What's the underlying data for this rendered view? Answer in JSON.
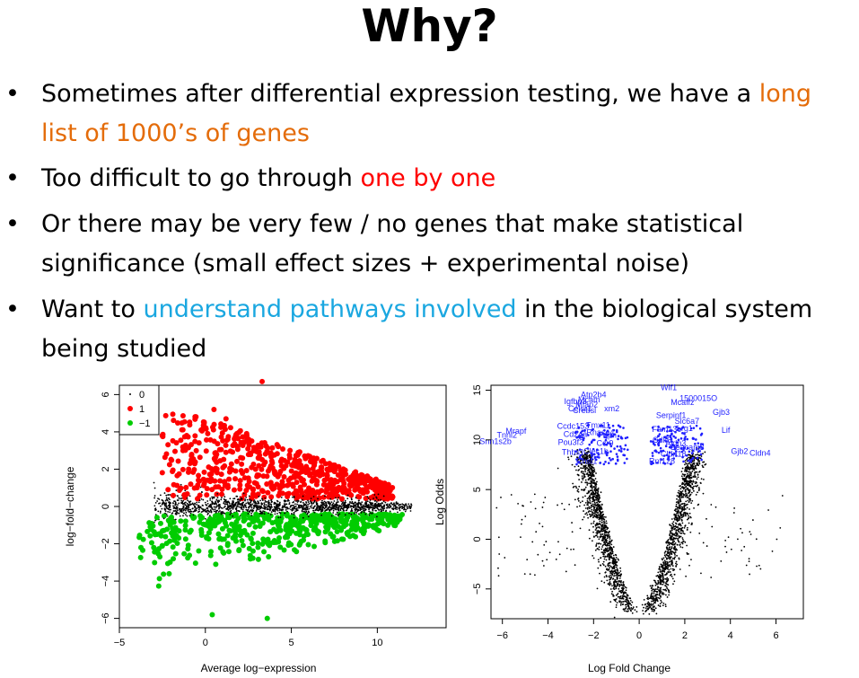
{
  "slide": {
    "title": "Why?",
    "bullets": [
      {
        "before": "Sometimes after differential expression testing, we have a ",
        "highlight": "long list of 1000’s of genes",
        "after": "",
        "highlight_color": "#e46c0a"
      },
      {
        "before": "Too difficult to go through ",
        "highlight": "one by one",
        "after": "",
        "highlight_color": "#ff0000"
      },
      {
        "before": "Or there may be very few / no genes that make statistical significance (small effect sizes + experimental noise)",
        "highlight": "",
        "after": ""
      },
      {
        "before": "Want to ",
        "highlight": "understand pathways involved",
        "after": " in the biological system being studied",
        "highlight_color": "#1aa7e0"
      }
    ]
  },
  "chart_data": [
    {
      "type": "scatter",
      "xlabel": "Average log−expression",
      "ylabel": "log−fold−change",
      "xlim": [
        -5,
        14
      ],
      "ylim": [
        -6.5,
        6.5
      ],
      "x_ticks": [
        "−5",
        "0",
        "5",
        "10"
      ],
      "x_tick_values": [
        -5,
        0,
        5,
        10
      ],
      "y_ticks": [
        "−6",
        "−4",
        "−2",
        "0",
        "2",
        "4",
        "6"
      ],
      "y_tick_values": [
        -6,
        -4,
        -2,
        0,
        2,
        4,
        6
      ],
      "legend": {
        "placement": "top-left",
        "entries": [
          "0",
          "1",
          "−1"
        ]
      },
      "series": [
        {
          "name": "0",
          "color": "#000000"
        },
        {
          "name": "1",
          "color": "#ff0000"
        },
        {
          "name": "−1",
          "color": "#00cc00"
        }
      ],
      "outlier_points": [
        [
          3.3,
          6.7
        ],
        [
          0.4,
          -5.8
        ],
        [
          3.6,
          -6.0
        ],
        [
          -3.0,
          5.4
        ],
        [
          -1.3,
          3.0
        ],
        [
          1.2,
          4.7
        ],
        [
          0.5,
          5.2
        ]
      ]
    },
    {
      "type": "scatter",
      "xlabel": "Log Fold Change",
      "ylabel": "Log Odds",
      "xlim": [
        -6.5,
        7.2
      ],
      "ylim": [
        -8,
        15.5
      ],
      "x_ticks": [
        "−6",
        "−4",
        "−2",
        "0",
        "2",
        "4",
        "6"
      ],
      "x_tick_values": [
        -6,
        -4,
        -2,
        0,
        2,
        4,
        6
      ],
      "y_ticks": [
        "−5",
        "0",
        "5",
        "10",
        "15"
      ],
      "y_tick_values": [
        -5,
        0,
        5,
        10,
        15
      ],
      "point_color": "#000000",
      "gene_label_color": "#1f1fff",
      "gene_labels": [
        {
          "text": "Wif1",
          "x": 1.3,
          "y": 15.0
        },
        {
          "text": "1500015O",
          "x": 2.6,
          "y": 13.9
        },
        {
          "text": "Atp2b4",
          "x": -2.0,
          "y": 14.3
        },
        {
          "text": "Mcam",
          "x": -2.2,
          "y": 13.8
        },
        {
          "text": "Igfbp3",
          "x": -2.8,
          "y": 13.6
        },
        {
          "text": "Mfap2",
          "x": -2.3,
          "y": 13.3
        },
        {
          "text": "Mcaffz",
          "x": 1.9,
          "y": 13.5
        },
        {
          "text": "Crebsl",
          "x": -2.4,
          "y": 12.7
        },
        {
          "text": "Celsr1",
          "x": -2.6,
          "y": 12.9
        },
        {
          "text": "xm2",
          "x": -1.2,
          "y": 12.9
        },
        {
          "text": "Gjb3",
          "x": 3.6,
          "y": 12.5
        },
        {
          "text": "Serpinf1",
          "x": 1.4,
          "y": 12.2
        },
        {
          "text": "Slc6a7",
          "x": 2.1,
          "y": 11.6
        },
        {
          "text": "Ccdc153",
          "x": -2.9,
          "y": 11.1
        },
        {
          "text": "Tmx11",
          "x": -1.8,
          "y": 11.2
        },
        {
          "text": "Fam13c",
          "x": 1.2,
          "y": 10.8
        },
        {
          "text": "Lrg1",
          "x": 2.0,
          "y": 10.9
        },
        {
          "text": "Lif",
          "x": 3.8,
          "y": 10.7
        },
        {
          "text": "Mrapf",
          "x": -5.4,
          "y": 10.6
        },
        {
          "text": "Tnni2",
          "x": -5.8,
          "y": 10.2
        },
        {
          "text": "Cd24a",
          "x": -2.8,
          "y": 10.3
        },
        {
          "text": "Rnase4",
          "x": -1.7,
          "y": 10.5
        },
        {
          "text": "Pdpn",
          "x": -1.4,
          "y": 10.2
        },
        {
          "text": "Snn1s2b",
          "x": -6.3,
          "y": 9.6
        },
        {
          "text": "Pou3f3",
          "x": -3.0,
          "y": 9.5
        },
        {
          "text": "Ccr9",
          "x": -1.5,
          "y": 9.4
        },
        {
          "text": "Aldh3",
          "x": 1.6,
          "y": 9.4
        },
        {
          "text": "Cdk6",
          "x": 1.0,
          "y": 9.7
        },
        {
          "text": "Ceacam3",
          "x": 2.1,
          "y": 9.0
        },
        {
          "text": "Thbs1",
          "x": -2.9,
          "y": 8.5
        },
        {
          "text": "Clec1b",
          "x": -1.9,
          "y": 8.6
        },
        {
          "text": "Cldn18",
          "x": 1.5,
          "y": 8.3
        },
        {
          "text": "Gjb2",
          "x": 4.4,
          "y": 8.6
        },
        {
          "text": "Cldn4",
          "x": 5.3,
          "y": 8.4
        },
        {
          "text": "Chst1",
          "x": -2.3,
          "y": 7.6
        },
        {
          "text": "Rnf128",
          "x": 1.0,
          "y": 7.6
        }
      ]
    }
  ]
}
